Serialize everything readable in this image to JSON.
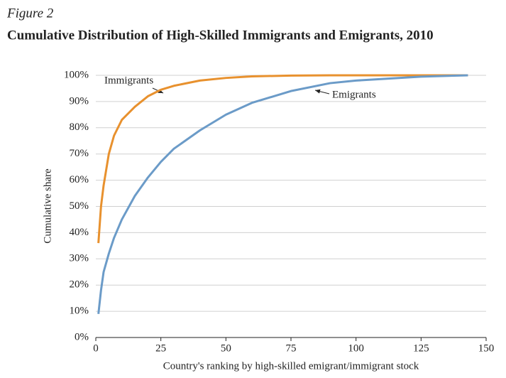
{
  "chart_data": {
    "type": "line",
    "figure_label": "Figure 2",
    "title": "Cumulative Distribution of High-Skilled Immigrants and Emigrants, 2010",
    "x_label": "Country's ranking by high-skilled emigrant/immigrant stock",
    "y_label": "Cumulative share",
    "x": [
      1,
      2,
      3,
      5,
      7,
      10,
      15,
      20,
      25,
      30,
      40,
      50,
      60,
      75,
      90,
      100,
      125,
      143
    ],
    "series": [
      {
        "name": "Immigrants",
        "color": "#e8912e",
        "values": [
          36,
          50,
          58,
          70,
          77,
          83,
          88,
          92,
          94.5,
          96,
          98,
          99,
          99.6,
          99.9,
          100,
          100,
          100,
          100
        ]
      },
      {
        "name": "Emigrants",
        "color": "#6b9bc8",
        "values": [
          9,
          18,
          25,
          32,
          38,
          45,
          54,
          61,
          67,
          72,
          79,
          85,
          89.5,
          94,
          97,
          98,
          99.5,
          100
        ]
      }
    ],
    "xlim": [
      0,
      150
    ],
    "xticks": [
      0,
      25,
      50,
      75,
      100,
      125,
      150
    ],
    "ylim": [
      0,
      100
    ],
    "yticks": [
      {
        "value": 0,
        "label": "0%"
      },
      {
        "value": 10,
        "label": "10%"
      },
      {
        "value": 20,
        "label": "20%"
      },
      {
        "value": 30,
        "label": "30%"
      },
      {
        "value": 40,
        "label": "40%"
      },
      {
        "value": 50,
        "label": "50%"
      },
      {
        "value": 60,
        "label": "60%"
      },
      {
        "value": 70,
        "label": "70%"
      },
      {
        "value": 80,
        "label": "80%"
      },
      {
        "value": 90,
        "label": "90%"
      },
      {
        "value": 100,
        "label": "100%"
      }
    ],
    "grid": true
  }
}
